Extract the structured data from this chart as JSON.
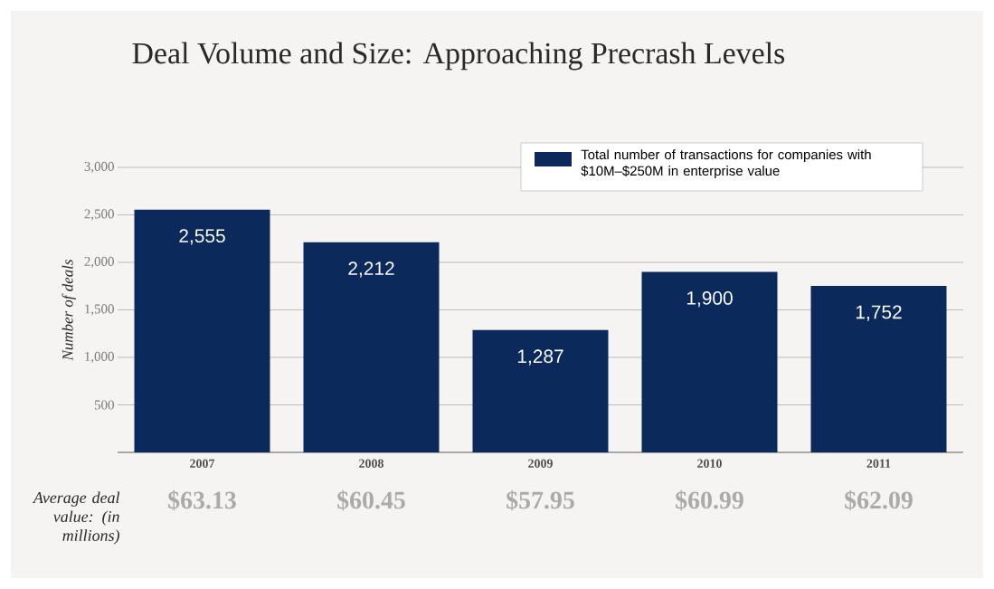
{
  "chart_data": {
    "type": "bar",
    "title": "Deal Volume and Size: Approaching Precrash Levels",
    "ylabel": "Number of deals",
    "categories": [
      "2007",
      "2008",
      "2009",
      "2010",
      "2011"
    ],
    "series": [
      {
        "name": "Total number of transactions for companies with $10M–$250M in enterprise value",
        "color": "#0b2a5b",
        "values": [
          2555,
          2212,
          1287,
          1900,
          1752
        ],
        "value_labels": [
          "2,555",
          "2,212",
          "1,287",
          "1,900",
          "1,752"
        ]
      }
    ],
    "ylim": [
      0,
      3000
    ],
    "yticks": [
      500,
      {
        "value": 1000,
        "label": "1,000"
      },
      {
        "value": 1500,
        "label": "1,500"
      },
      {
        "value": 2000,
        "label": "2,000"
      },
      {
        "value": 2500,
        "label": "2,500"
      },
      {
        "value": 3000,
        "label": "3,000"
      }
    ],
    "grid": "y",
    "legend": "top right",
    "annotations": [
      "Average deal value: (in millions)",
      "$63.13",
      "$60.45",
      "$57.95",
      "$60.99",
      "$62.09"
    ]
  }
}
